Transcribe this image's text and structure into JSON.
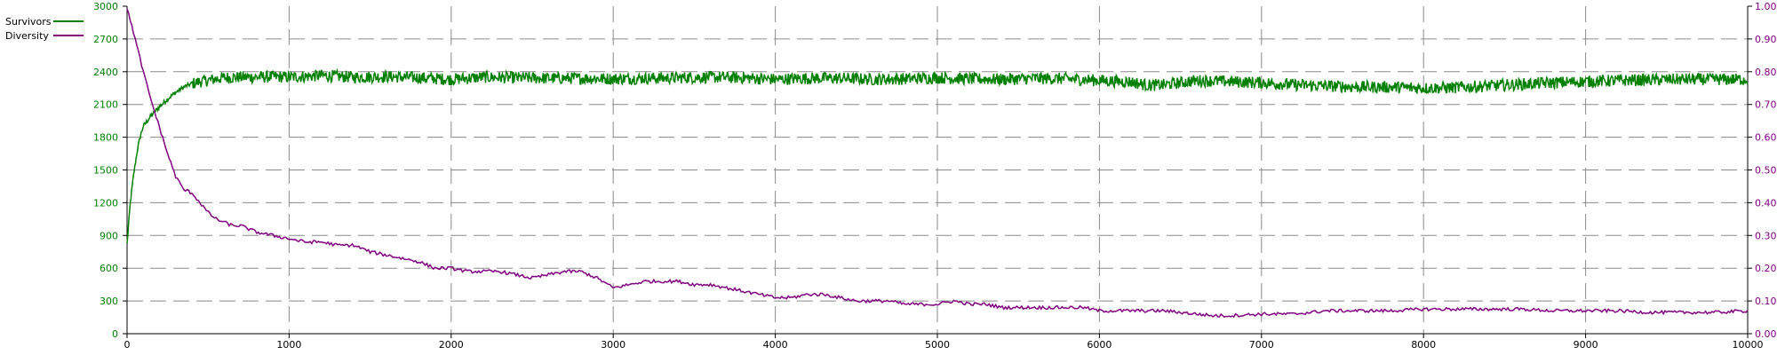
{
  "chart_data": {
    "type": "line",
    "title": "",
    "xlabel": "",
    "ylabel": "",
    "y2label": "",
    "grid": true,
    "legend_position": "top-left",
    "x_ticks": [
      "0",
      "1000",
      "2000",
      "3000",
      "4000",
      "5000",
      "6000",
      "7000",
      "8000",
      "9000",
      "10000"
    ],
    "y_ticks": [
      "0",
      "300",
      "600",
      "900",
      "1200",
      "1500",
      "1800",
      "2100",
      "2400",
      "2700",
      "3000"
    ],
    "y2_ticks": [
      "0.00",
      "0.10",
      "0.20",
      "0.30",
      "0.40",
      "0.50",
      "0.60",
      "0.70",
      "0.80",
      "0.90",
      "1.00"
    ],
    "xlim": [
      0,
      10000
    ],
    "ylim": [
      0,
      3000
    ],
    "y2lim": [
      0,
      1.0
    ],
    "series": [
      {
        "name": "Survivors",
        "color": "#008000",
        "axis": "left",
        "noisy": true,
        "x": [
          0,
          20,
          40,
          60,
          80,
          100,
          150,
          200,
          250,
          300,
          350,
          400,
          450,
          500,
          550,
          600,
          700,
          800,
          900,
          1000,
          1200,
          1400,
          1600,
          1800,
          2000,
          2200,
          2400,
          2600,
          2800,
          3000,
          3200,
          3400,
          3600,
          3800,
          4000,
          4200,
          4400,
          4600,
          4800,
          5000,
          5200,
          5400,
          5600,
          5800,
          6000,
          6200,
          6300,
          6400,
          6500,
          6600,
          6800,
          7000,
          7200,
          7400,
          7600,
          7800,
          8000,
          8200,
          8400,
          8600,
          8800,
          9000,
          9200,
          9400,
          9600,
          9800,
          10000
        ],
        "y": [
          820,
          1200,
          1450,
          1650,
          1800,
          1900,
          2000,
          2080,
          2150,
          2210,
          2260,
          2290,
          2310,
          2320,
          2335,
          2345,
          2350,
          2350,
          2355,
          2350,
          2365,
          2350,
          2355,
          2345,
          2330,
          2350,
          2345,
          2340,
          2340,
          2335,
          2340,
          2345,
          2350,
          2345,
          2330,
          2340,
          2340,
          2330,
          2335,
          2345,
          2335,
          2330,
          2340,
          2335,
          2320,
          2305,
          2275,
          2280,
          2300,
          2320,
          2310,
          2300,
          2280,
          2270,
          2260,
          2260,
          2250,
          2255,
          2270,
          2285,
          2300,
          2310,
          2320,
          2325,
          2330,
          2330,
          2330
        ]
      },
      {
        "name": "Diversity",
        "color": "#800080",
        "axis": "right",
        "noisy": false,
        "x": [
          0,
          25,
          50,
          75,
          100,
          150,
          200,
          250,
          300,
          350,
          400,
          450,
          500,
          550,
          600,
          650,
          700,
          800,
          900,
          1000,
          1100,
          1200,
          1300,
          1400,
          1500,
          1600,
          1700,
          1800,
          1900,
          2000,
          2100,
          2200,
          2300,
          2400,
          2500,
          2600,
          2700,
          2800,
          2900,
          3000,
          3100,
          3200,
          3300,
          3400,
          3500,
          3600,
          3700,
          3800,
          3900,
          4000,
          4100,
          4200,
          4300,
          4400,
          4500,
          4600,
          4700,
          4800,
          4900,
          5000,
          5100,
          5200,
          5300,
          5400,
          5500,
          5600,
          5700,
          5800,
          5900,
          6000,
          6200,
          6400,
          6600,
          6700,
          6800,
          7000,
          7200,
          7400,
          7600,
          7800,
          8000,
          8200,
          8400,
          8600,
          8800,
          9000,
          9200,
          9400,
          9600,
          9800,
          10000
        ],
        "y": [
          0.99,
          0.95,
          0.9,
          0.85,
          0.8,
          0.71,
          0.63,
          0.55,
          0.48,
          0.44,
          0.43,
          0.4,
          0.37,
          0.35,
          0.34,
          0.33,
          0.33,
          0.31,
          0.3,
          0.29,
          0.28,
          0.28,
          0.27,
          0.27,
          0.25,
          0.24,
          0.23,
          0.22,
          0.2,
          0.2,
          0.19,
          0.19,
          0.19,
          0.18,
          0.17,
          0.18,
          0.19,
          0.19,
          0.17,
          0.14,
          0.15,
          0.16,
          0.16,
          0.16,
          0.15,
          0.15,
          0.14,
          0.13,
          0.12,
          0.11,
          0.11,
          0.12,
          0.12,
          0.11,
          0.1,
          0.1,
          0.1,
          0.09,
          0.09,
          0.09,
          0.1,
          0.09,
          0.09,
          0.08,
          0.08,
          0.08,
          0.08,
          0.08,
          0.08,
          0.07,
          0.07,
          0.07,
          0.06,
          0.055,
          0.055,
          0.06,
          0.06,
          0.07,
          0.07,
          0.07,
          0.075,
          0.075,
          0.075,
          0.075,
          0.07,
          0.07,
          0.07,
          0.065,
          0.065,
          0.065,
          0.07
        ]
      }
    ]
  }
}
